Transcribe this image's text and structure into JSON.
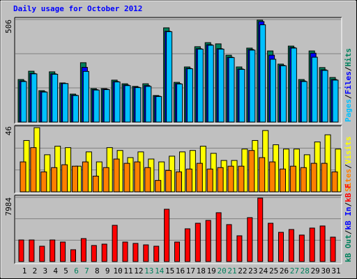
{
  "title": "Daily usage for October 2012",
  "separator": "/",
  "chart_data": [
    {
      "type": "bar",
      "ylim": [
        0,
        506
      ],
      "yticks": [
        506
      ],
      "series": [
        {
          "name": "Hits",
          "color": "#00805c",
          "values": [
            210,
            251,
            155,
            248,
            193,
            138,
            293,
            165,
            165,
            207,
            189,
            176,
            189,
            131,
            465,
            196,
            272,
            372,
            392,
            386,
            330,
            272,
            365,
            503,
            351,
            286,
            375,
            210,
            351,
            269,
            220
          ]
        },
        {
          "name": "Files",
          "color": "#0000ff",
          "values": [
            203,
            240,
            150,
            238,
            190,
            133,
            270,
            160,
            162,
            200,
            183,
            172,
            180,
            128,
            448,
            190,
            265,
            362,
            382,
            362,
            320,
            262,
            358,
            496,
            330,
            280,
            368,
            203,
            340,
            258,
            210
          ]
        },
        {
          "name": "Pages",
          "color": "#00c0ff",
          "values": [
            200,
            238,
            148,
            236,
            190,
            131,
            250,
            158,
            160,
            198,
            180,
            170,
            176,
            126,
            446,
            188,
            263,
            360,
            379,
            360,
            318,
            260,
            355,
            480,
            310,
            278,
            365,
            200,
            320,
            255,
            207
          ]
        }
      ]
    },
    {
      "type": "bar",
      "ylim": [
        0,
        46
      ],
      "yticks": [
        46
      ],
      "series": [
        {
          "name": "Visits",
          "color": "#ffff00",
          "values": [
            36,
            45,
            26,
            32,
            31,
            18,
            28,
            21,
            31,
            29,
            24,
            28,
            23,
            21,
            25,
            28,
            29,
            32,
            27,
            22,
            22,
            30,
            36,
            43,
            33,
            30,
            30,
            26,
            35,
            40,
            30
          ]
        },
        {
          "name": "Sites",
          "color": "#ff8000",
          "values": [
            21,
            31,
            14,
            17,
            19,
            18,
            21,
            11,
            17,
            23,
            20,
            21,
            17,
            8,
            15,
            14,
            16,
            20,
            16,
            17,
            18,
            18,
            29,
            24,
            21,
            16,
            18,
            17,
            20,
            20,
            14
          ]
        }
      ]
    },
    {
      "type": "bar",
      "ylim": [
        0,
        7984
      ],
      "yticks": [
        7984
      ],
      "categories": [
        "1",
        "2",
        "3",
        "4",
        "5",
        "6",
        "7",
        "8",
        "9",
        "10",
        "11",
        "12",
        "13",
        "14",
        "15",
        "16",
        "17",
        "18",
        "19",
        "20",
        "21",
        "22",
        "23",
        "24",
        "25",
        "26",
        "27",
        "28",
        "29",
        "30",
        "31"
      ],
      "highlight_categories": [
        "6",
        "7",
        "13",
        "14",
        "20",
        "21",
        "27",
        "28"
      ],
      "highlight_color": "#00805c",
      "series": [
        {
          "name": "kB F",
          "color": "#ff0000",
          "values": [
            2690,
            2690,
            1910,
            2690,
            2430,
            1475,
            2860,
            2000,
            2170,
            4510,
            2430,
            2260,
            2080,
            1910,
            6510,
            2430,
            4080,
            4770,
            5120,
            6080,
            4600,
            3210,
            5470,
            7900,
            4770,
            3640,
            3990,
            3300,
            4170,
            4430,
            3040
          ]
        },
        {
          "name": "kB In",
          "color": "#0000ff"
        },
        {
          "name": "kB Out",
          "color": "#00805c"
        }
      ]
    }
  ]
}
